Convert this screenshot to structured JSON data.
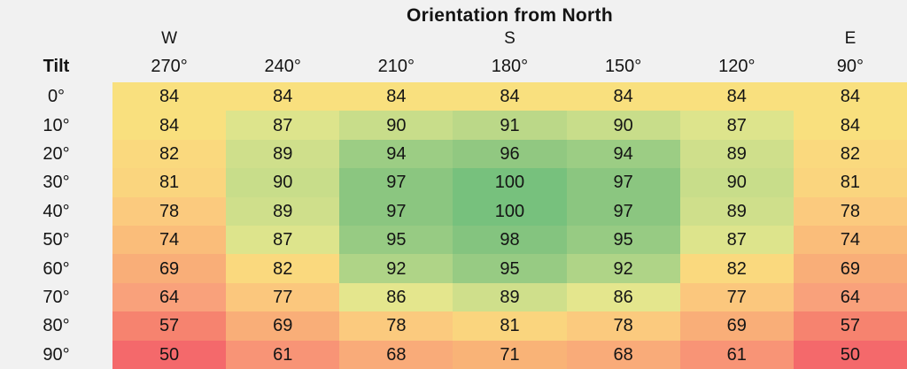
{
  "page": {
    "background": "#f1f1f1",
    "text_color": "#141414"
  },
  "chart_data": {
    "type": "heatmap",
    "title": "Orientation from North",
    "ylabel": "Tilt",
    "x_ticks": [
      "270°",
      "240°",
      "210°",
      "180°",
      "150°",
      "120°",
      "90°"
    ],
    "compass": [
      "W",
      "",
      "",
      "S",
      "",
      "",
      "E"
    ],
    "y_ticks": [
      "0°",
      "10°",
      "20°",
      "30°",
      "40°",
      "50°",
      "60°",
      "70°",
      "80°",
      "90°"
    ],
    "values": [
      [
        84,
        84,
        84,
        84,
        84,
        84,
        84
      ],
      [
        84,
        87,
        90,
        91,
        90,
        87,
        84
      ],
      [
        82,
        89,
        94,
        96,
        94,
        89,
        82
      ],
      [
        81,
        90,
        97,
        100,
        97,
        90,
        81
      ],
      [
        78,
        89,
        97,
        100,
        97,
        89,
        78
      ],
      [
        74,
        87,
        95,
        98,
        95,
        87,
        74
      ],
      [
        69,
        82,
        92,
        95,
        92,
        82,
        69
      ],
      [
        64,
        77,
        86,
        89,
        86,
        77,
        64
      ],
      [
        57,
        69,
        78,
        81,
        78,
        69,
        57
      ],
      [
        50,
        61,
        68,
        71,
        68,
        61,
        50
      ]
    ],
    "value_range": [
      50,
      100
    ],
    "grid": "off",
    "legend": "none",
    "color_scale": [
      {
        "value": 50,
        "color": "#f4696b"
      },
      {
        "value": 57,
        "color": "#f6836f"
      },
      {
        "value": 64,
        "color": "#f9a17b"
      },
      {
        "value": 71,
        "color": "#f9b377"
      },
      {
        "value": 78,
        "color": "#fbca7e"
      },
      {
        "value": 84,
        "color": "#f9e07e"
      },
      {
        "value": 86,
        "color": "#e4e68d"
      },
      {
        "value": 90,
        "color": "#c8dd8a"
      },
      {
        "value": 93,
        "color": "#a2cf85"
      },
      {
        "value": 97,
        "color": "#8bc680"
      },
      {
        "value": 100,
        "color": "#77c17d"
      }
    ]
  }
}
